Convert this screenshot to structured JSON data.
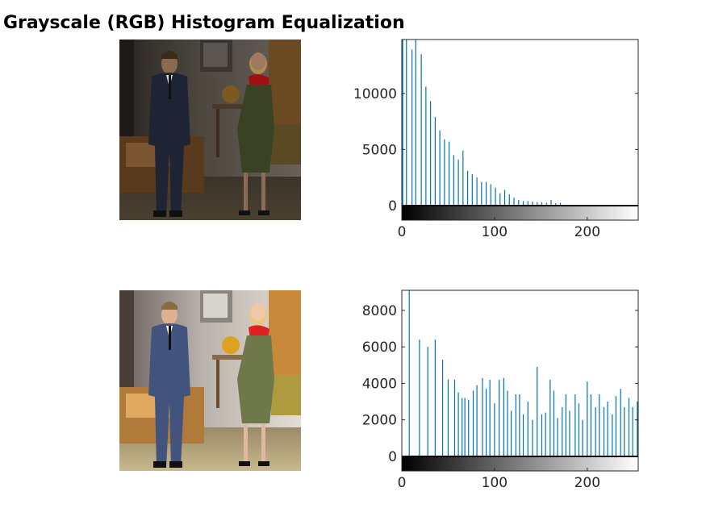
{
  "title": "Grayscale (RGB) Histogram Equalization",
  "images": [
    {
      "name": "original-photo",
      "description_icon": "photo-two-people-in-living-room",
      "tone": "dark"
    },
    {
      "name": "equalized-photo",
      "description_icon": "photo-two-people-in-living-room",
      "tone": "bright"
    }
  ],
  "chart_data": [
    {
      "type": "bar",
      "title": "",
      "xlabel": "",
      "ylabel": "",
      "xlim": [
        0,
        255
      ],
      "ylim": [
        -1300,
        14800
      ],
      "xticks": [
        0,
        100,
        200
      ],
      "yticks": [
        0,
        5000,
        10000
      ],
      "colorbar": "grayscale-black-to-white",
      "bar_color": "#0072bd",
      "series": [
        {
          "x": [
            1,
            5,
            11,
            15,
            21,
            26,
            31,
            36,
            41,
            46,
            51,
            56,
            61,
            66,
            71,
            76,
            81,
            86,
            91,
            96,
            101,
            106,
            111,
            116,
            121,
            126,
            131,
            136,
            141,
            146,
            151,
            156,
            161,
            166,
            171,
            176
          ],
          "values": [
            14800,
            15500,
            13900,
            15200,
            13500,
            10600,
            9300,
            7900,
            6700,
            5900,
            5700,
            4500,
            4100,
            4900,
            3100,
            2800,
            2500,
            2100,
            2100,
            1900,
            1600,
            1100,
            1400,
            1000,
            700,
            500,
            400,
            400,
            350,
            300,
            300,
            250,
            500,
            200,
            250,
            50
          ]
        }
      ]
    },
    {
      "type": "bar",
      "title": "",
      "xlabel": "",
      "ylabel": "",
      "xlim": [
        0,
        255
      ],
      "ylim": [
        -800,
        9100
      ],
      "xticks": [
        0,
        100,
        200
      ],
      "yticks": [
        0,
        2000,
        4000,
        6000,
        8000
      ],
      "colorbar": "grayscale-black-to-white",
      "bar_color": "#0072bd",
      "series": [
        {
          "x": [
            8,
            19,
            28,
            36,
            44,
            50,
            57,
            61,
            65,
            68,
            72,
            77,
            81,
            87,
            91,
            95,
            100,
            105,
            110,
            114,
            118,
            123,
            127,
            131,
            136,
            141,
            146,
            151,
            155,
            160,
            164,
            168,
            173,
            177,
            181,
            187,
            191,
            195,
            200,
            204,
            209,
            213,
            218,
            222,
            227,
            231,
            236,
            240,
            245,
            249,
            254
          ],
          "values": [
            9100,
            6400,
            6000,
            6400,
            5300,
            4200,
            4200,
            3500,
            3200,
            3200,
            3100,
            3600,
            3900,
            4300,
            3700,
            4200,
            2900,
            4200,
            4300,
            3600,
            2500,
            3400,
            3400,
            2300,
            3000,
            2000,
            4900,
            2300,
            2400,
            4200,
            3600,
            2100,
            2700,
            3400,
            2500,
            3400,
            2900,
            2000,
            4100,
            3400,
            2700,
            3400,
            2700,
            3000,
            2300,
            3300,
            3700,
            2700,
            3200,
            2700,
            3000
          ]
        }
      ]
    }
  ]
}
